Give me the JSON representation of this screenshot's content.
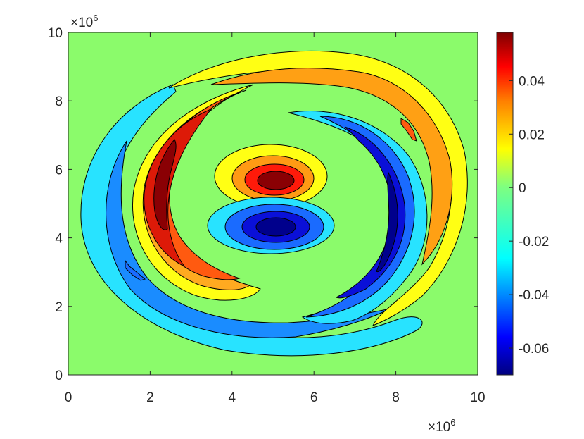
{
  "chart_data": {
    "type": "contour",
    "title": "",
    "xlabel": "",
    "ylabel": "",
    "xlim": [
      0,
      10
    ],
    "ylim": [
      0,
      10
    ],
    "x_multiplier": "×10",
    "x_multiplier_exp": "6",
    "y_multiplier": "×10",
    "y_multiplier_exp": "6",
    "x_ticks": [
      0,
      2,
      4,
      6,
      8,
      10
    ],
    "y_ticks": [
      0,
      2,
      4,
      6,
      8,
      10
    ],
    "x_tick_labels": [
      "0",
      "2",
      "4",
      "6",
      "8",
      "10"
    ],
    "y_tick_labels": [
      "0",
      "2",
      "4",
      "6",
      "8",
      "10"
    ],
    "colorbar": {
      "range": [
        -0.07,
        0.058
      ],
      "ticks": [
        -0.06,
        -0.04,
        -0.02,
        0,
        0.02,
        0.04
      ],
      "tick_labels": [
        "-0.06",
        "-0.04",
        "-0.02",
        "0",
        "0.02",
        "0.04"
      ],
      "colormap": "jet"
    },
    "background_level": 0,
    "features": [
      {
        "name": "central dipole positive lobe",
        "center": [
          5.0,
          5.7
        ],
        "peak": 0.058
      },
      {
        "name": "central dipole negative lobe",
        "center": [
          5.0,
          4.3
        ],
        "peak": -0.07
      },
      {
        "name": "left spiral arm positive",
        "center": [
          2.3,
          5.5
        ],
        "peak": 0.055
      },
      {
        "name": "right spiral arm negative",
        "center": [
          7.8,
          4.8
        ],
        "peak": -0.065
      },
      {
        "name": "outer upper arc positive",
        "center": [
          6.5,
          8.3
        ],
        "peak": 0.02
      },
      {
        "name": "outer lower arc negative",
        "center": [
          3.5,
          1.6
        ],
        "peak": -0.03
      }
    ]
  }
}
